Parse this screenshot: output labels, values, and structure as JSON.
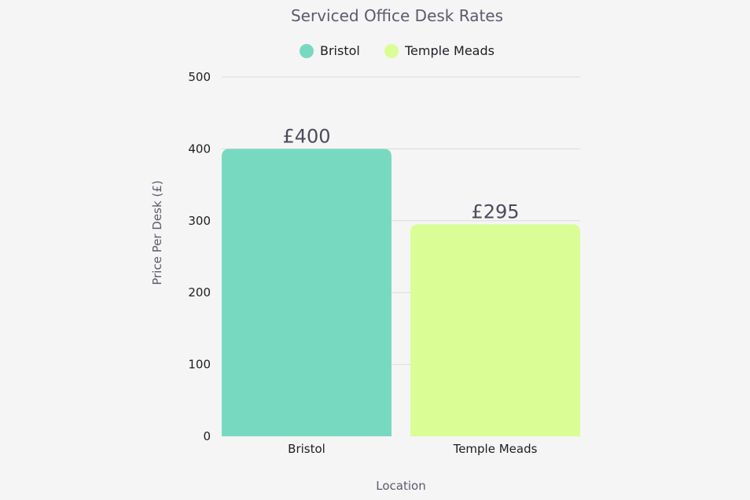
{
  "chart_data": {
    "type": "bar",
    "title": "Serviced Office Desk Rates",
    "xlabel": "Location",
    "ylabel": "Price Per Desk (£)",
    "categories": [
      "Bristol",
      "Temple Meads"
    ],
    "series": [
      {
        "name": "Bristol",
        "color": "#78d9c1",
        "values": [
          400,
          null
        ]
      },
      {
        "name": "Temple Meads",
        "color": "#dbfd96",
        "values": [
          null,
          295
        ]
      }
    ],
    "data_labels": [
      "£400",
      "£295"
    ],
    "ylim": [
      0,
      500
    ],
    "yticks": [
      0,
      100,
      200,
      300,
      400,
      500
    ],
    "grid": true,
    "legend_position": "top-center"
  }
}
